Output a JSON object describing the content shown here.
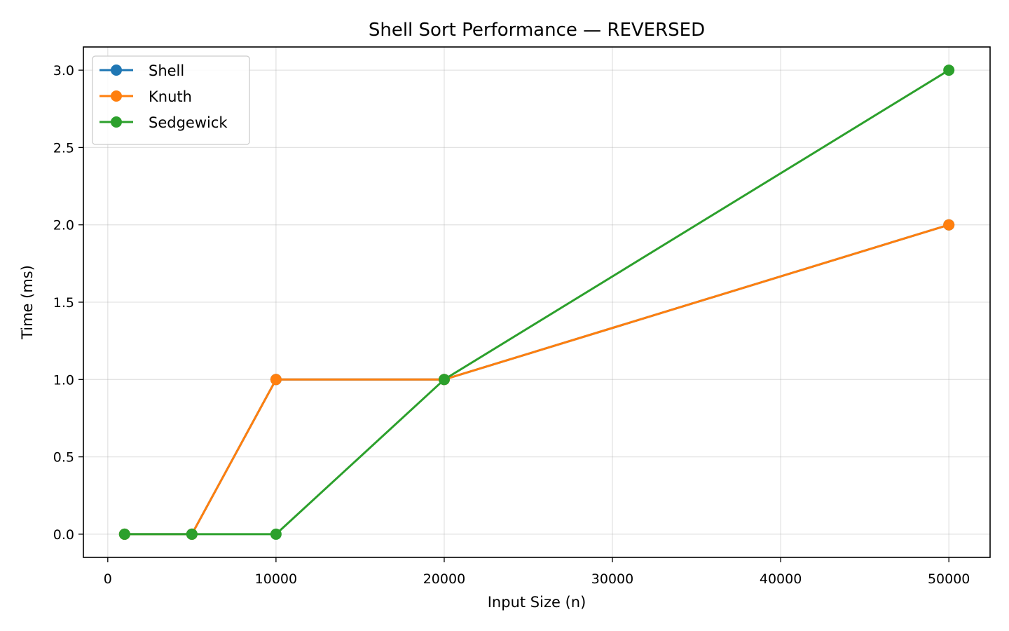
{
  "chart_data": {
    "type": "line",
    "title": "Shell Sort Performance — REVERSED",
    "xlabel": "Input Size (n)",
    "ylabel": "Time (ms)",
    "xlim": [
      -1450,
      52450
    ],
    "ylim": [
      -0.15,
      3.15
    ],
    "xticks": [
      0,
      10000,
      20000,
      30000,
      40000,
      50000
    ],
    "xtick_labels": [
      "0",
      "10000",
      "20000",
      "30000",
      "40000",
      "50000"
    ],
    "yticks": [
      0.0,
      0.5,
      1.0,
      1.5,
      2.0,
      2.5,
      3.0
    ],
    "ytick_labels": [
      "0.0",
      "0.5",
      "1.0",
      "1.5",
      "2.0",
      "2.5",
      "3.0"
    ],
    "grid": true,
    "legend_position": "top-left",
    "x": [
      1000,
      5000,
      10000,
      20000,
      50000
    ],
    "series": [
      {
        "name": "Shell",
        "color": "#1f77b4",
        "values": [
          0,
          0,
          1,
          1,
          2
        ]
      },
      {
        "name": "Knuth",
        "color": "#ff7f0e",
        "values": [
          0,
          0,
          1,
          1,
          2
        ]
      },
      {
        "name": "Sedgewick",
        "color": "#2ca02c",
        "values": [
          0,
          0,
          0,
          1,
          3
        ]
      }
    ]
  }
}
